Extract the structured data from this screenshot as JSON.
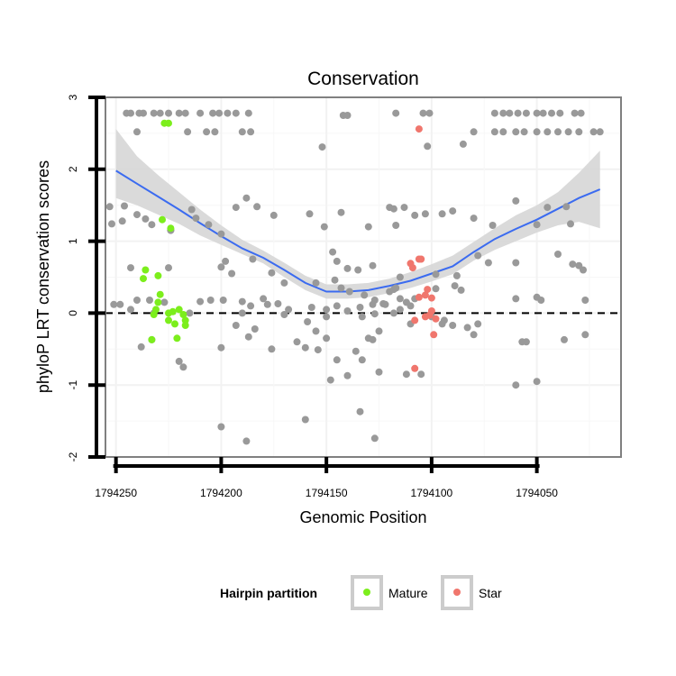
{
  "chart_data": {
    "type": "scatter",
    "title": "Conservation",
    "xlabel": "Genomic Position",
    "ylabel": "phyloP LRT conservation scores",
    "x_reversed": true,
    "xlim": [
      1794255,
      1794010
    ],
    "ylim": [
      -2,
      3
    ],
    "x_ticks": [
      1794250,
      1794200,
      1794150,
      1794100,
      1794050
    ],
    "y_ticks": [
      -2,
      -1,
      0,
      1,
      2,
      3
    ],
    "reference_line": {
      "y": 0,
      "style": "dashed"
    },
    "grid": true,
    "legend": {
      "title": "Hairpin partition",
      "position": "bottom",
      "entries": [
        {
          "name": "Mature",
          "color": "#7cee1c"
        },
        {
          "name": "Star",
          "color": "#f0766d"
        }
      ]
    },
    "colors": {
      "other": "#999999",
      "smooth_line": "#3b6bf0",
      "smooth_band": "#d6d6d6"
    },
    "smooth_fit": {
      "x": [
        1794250,
        1794240,
        1794230,
        1794220,
        1794210,
        1794200,
        1794190,
        1794180,
        1794170,
        1794160,
        1794150,
        1794140,
        1794130,
        1794120,
        1794110,
        1794100,
        1794090,
        1794080,
        1794070,
        1794060,
        1794050,
        1794040,
        1794030,
        1794020
      ],
      "y": [
        1.98,
        1.8,
        1.62,
        1.44,
        1.25,
        1.07,
        0.9,
        0.77,
        0.6,
        0.42,
        0.3,
        0.3,
        0.32,
        0.38,
        0.45,
        0.55,
        0.65,
        0.85,
        1.03,
        1.17,
        1.3,
        1.45,
        1.6,
        1.72
      ],
      "lower": [
        1.6,
        1.5,
        1.37,
        1.24,
        1.08,
        0.95,
        0.82,
        0.69,
        0.5,
        0.32,
        0.2,
        0.2,
        0.22,
        0.28,
        0.35,
        0.44,
        0.54,
        0.73,
        0.88,
        1.0,
        1.12,
        1.22,
        1.27,
        1.18
      ],
      "upper": [
        2.56,
        2.18,
        1.92,
        1.68,
        1.44,
        1.22,
        1.02,
        0.87,
        0.7,
        0.52,
        0.4,
        0.4,
        0.42,
        0.48,
        0.57,
        0.68,
        0.8,
        0.99,
        1.18,
        1.36,
        1.5,
        1.68,
        1.95,
        2.26
      ]
    },
    "series": [
      {
        "name": "Mature",
        "points": [
          [
            1794227,
            2.64
          ],
          [
            1794225,
            2.64
          ],
          [
            1794228,
            1.3
          ],
          [
            1794224,
            1.18
          ],
          [
            1794230,
            0.52
          ],
          [
            1794229,
            0.26
          ],
          [
            1794230,
            0.15
          ],
          [
            1794232,
            -0.02
          ],
          [
            1794231,
            0.05
          ],
          [
            1794225,
            0.0
          ],
          [
            1794223,
            0.02
          ],
          [
            1794218,
            -0.02
          ],
          [
            1794220,
            0.05
          ],
          [
            1794217,
            -0.1
          ],
          [
            1794225,
            -0.1
          ],
          [
            1794222,
            -0.15
          ],
          [
            1794217,
            -0.17
          ],
          [
            1794221,
            -0.35
          ],
          [
            1794233,
            -0.37
          ],
          [
            1794236,
            0.6
          ],
          [
            1794237,
            0.48
          ]
        ]
      },
      {
        "name": "Star",
        "points": [
          [
            1794106,
            2.56
          ],
          [
            1794110,
            0.69
          ],
          [
            1794109,
            0.63
          ],
          [
            1794105,
            0.75
          ],
          [
            1794106,
            0.75
          ],
          [
            1794102,
            0.33
          ],
          [
            1794103,
            0.25
          ],
          [
            1794100,
            0.21
          ],
          [
            1794100,
            0.03
          ],
          [
            1794101,
            -0.03
          ],
          [
            1794106,
            0.22
          ],
          [
            1794098,
            -0.08
          ],
          [
            1794103,
            -0.05
          ],
          [
            1794108,
            -0.1
          ],
          [
            1794099,
            -0.3
          ],
          [
            1794108,
            -0.77
          ]
        ]
      },
      {
        "name": "",
        "points": [
          [
            1794245,
            2.78
          ],
          [
            1794243,
            2.78
          ],
          [
            1794239,
            2.78
          ],
          [
            1794237,
            2.78
          ],
          [
            1794232,
            2.78
          ],
          [
            1794229,
            2.78
          ],
          [
            1794225,
            2.78
          ],
          [
            1794220,
            2.78
          ],
          [
            1794217,
            2.78
          ],
          [
            1794210,
            2.78
          ],
          [
            1794204,
            2.78
          ],
          [
            1794201,
            2.78
          ],
          [
            1794197,
            2.78
          ],
          [
            1794193,
            2.78
          ],
          [
            1794187,
            2.78
          ],
          [
            1794240,
            2.52
          ],
          [
            1794216,
            2.52
          ],
          [
            1794207,
            2.52
          ],
          [
            1794203,
            2.52
          ],
          [
            1794190,
            2.52
          ],
          [
            1794186,
            2.52
          ],
          [
            1794142,
            2.75
          ],
          [
            1794140,
            2.75
          ],
          [
            1794117,
            2.78
          ],
          [
            1794104,
            2.78
          ],
          [
            1794101,
            2.78
          ],
          [
            1794080,
            2.52
          ],
          [
            1794070,
            2.52
          ],
          [
            1794066,
            2.52
          ],
          [
            1794060,
            2.52
          ],
          [
            1794056,
            2.52
          ],
          [
            1794050,
            2.52
          ],
          [
            1794045,
            2.52
          ],
          [
            1794040,
            2.52
          ],
          [
            1794035,
            2.52
          ],
          [
            1794030,
            2.52
          ],
          [
            1794023,
            2.52
          ],
          [
            1794020,
            2.52
          ],
          [
            1794070,
            2.78
          ],
          [
            1794066,
            2.78
          ],
          [
            1794063,
            2.78
          ],
          [
            1794059,
            2.78
          ],
          [
            1794055,
            2.78
          ],
          [
            1794050,
            2.78
          ],
          [
            1794047,
            2.78
          ],
          [
            1794043,
            2.78
          ],
          [
            1794039,
            2.78
          ],
          [
            1794032,
            2.78
          ],
          [
            1794029,
            2.78
          ],
          [
            1794152,
            2.31
          ],
          [
            1794102,
            2.32
          ],
          [
            1794085,
            2.35
          ],
          [
            1794253,
            1.48
          ],
          [
            1794246,
            1.49
          ],
          [
            1794252,
            1.24
          ],
          [
            1794247,
            1.28
          ],
          [
            1794240,
            1.37
          ],
          [
            1794236,
            1.31
          ],
          [
            1794233,
            1.23
          ],
          [
            1794214,
            1.44
          ],
          [
            1794212,
            1.32
          ],
          [
            1794206,
            1.23
          ],
          [
            1794224,
            1.15
          ],
          [
            1794193,
            1.47
          ],
          [
            1794188,
            1.6
          ],
          [
            1794183,
            1.48
          ],
          [
            1794175,
            1.36
          ],
          [
            1794158,
            1.38
          ],
          [
            1794151,
            1.2
          ],
          [
            1794143,
            1.4
          ],
          [
            1794130,
            1.2
          ],
          [
            1794120,
            1.47
          ],
          [
            1794118,
            1.45
          ],
          [
            1794113,
            1.47
          ],
          [
            1794117,
            1.22
          ],
          [
            1794108,
            1.36
          ],
          [
            1794103,
            1.38
          ],
          [
            1794095,
            1.38
          ],
          [
            1794090,
            1.42
          ],
          [
            1794080,
            1.32
          ],
          [
            1794071,
            1.22
          ],
          [
            1794060,
            1.56
          ],
          [
            1794050,
            1.23
          ],
          [
            1794045,
            1.47
          ],
          [
            1794036,
            1.48
          ],
          [
            1794034,
            1.24
          ],
          [
            1794200,
            1.1
          ],
          [
            1794224,
            1.15
          ],
          [
            1794243,
            0.63
          ],
          [
            1794225,
            0.63
          ],
          [
            1794200,
            0.64
          ],
          [
            1794195,
            0.55
          ],
          [
            1794176,
            0.56
          ],
          [
            1794147,
            0.85
          ],
          [
            1794145,
            0.72
          ],
          [
            1794140,
            0.62
          ],
          [
            1794135,
            0.6
          ],
          [
            1794128,
            0.66
          ],
          [
            1794115,
            0.5
          ],
          [
            1794098,
            0.54
          ],
          [
            1794088,
            0.52
          ],
          [
            1794078,
            0.8
          ],
          [
            1794073,
            0.7
          ],
          [
            1794060,
            0.7
          ],
          [
            1794040,
            0.82
          ],
          [
            1794033,
            0.68
          ],
          [
            1794030,
            0.66
          ],
          [
            1794028,
            0.6
          ],
          [
            1794198,
            0.72
          ],
          [
            1794185,
            0.75
          ],
          [
            1794170,
            0.42
          ],
          [
            1794155,
            0.42
          ],
          [
            1794146,
            0.46
          ],
          [
            1794143,
            0.35
          ],
          [
            1794139,
            0.3
          ],
          [
            1794132,
            0.25
          ],
          [
            1794127,
            0.18
          ],
          [
            1794123,
            0.13
          ],
          [
            1794120,
            0.3
          ],
          [
            1794118,
            0.33
          ],
          [
            1794117,
            0.35
          ],
          [
            1794115,
            0.2
          ],
          [
            1794112,
            0.15
          ],
          [
            1794110,
            0.1
          ],
          [
            1794098,
            0.34
          ],
          [
            1794089,
            0.38
          ],
          [
            1794086,
            0.32
          ],
          [
            1794060,
            0.2
          ],
          [
            1794050,
            0.22
          ],
          [
            1794048,
            0.18
          ],
          [
            1794027,
            0.18
          ],
          [
            1794251,
            0.12
          ],
          [
            1794248,
            0.12
          ],
          [
            1794243,
            0.05
          ],
          [
            1794240,
            0.18
          ],
          [
            1794234,
            0.18
          ],
          [
            1794227,
            0.15
          ],
          [
            1794210,
            0.16
          ],
          [
            1794205,
            0.18
          ],
          [
            1794199,
            0.18
          ],
          [
            1794190,
            0.16
          ],
          [
            1794186,
            0.1
          ],
          [
            1794180,
            0.2
          ],
          [
            1794178,
            0.12
          ],
          [
            1794173,
            0.13
          ],
          [
            1794168,
            0.05
          ],
          [
            1794157,
            0.08
          ],
          [
            1794150,
            0.05
          ],
          [
            1794145,
            0.1
          ],
          [
            1794140,
            0.03
          ],
          [
            1794134,
            0.08
          ],
          [
            1794128,
            0.12
          ],
          [
            1794122,
            0.12
          ],
          [
            1794115,
            0.05
          ],
          [
            1794108,
            0.2
          ],
          [
            1794232,
            0.0
          ],
          [
            1794215,
            0.0
          ],
          [
            1794190,
            0.0
          ],
          [
            1794170,
            -0.02
          ],
          [
            1794150,
            -0.05
          ],
          [
            1794133,
            -0.05
          ],
          [
            1794127,
            -0.01
          ],
          [
            1794118,
            0.0
          ],
          [
            1794100,
            -0.05
          ],
          [
            1794094,
            -0.1
          ],
          [
            1794090,
            -0.17
          ],
          [
            1794083,
            -0.2
          ],
          [
            1794078,
            -0.15
          ],
          [
            1794193,
            -0.17
          ],
          [
            1794187,
            -0.33
          ],
          [
            1794184,
            -0.22
          ],
          [
            1794176,
            -0.5
          ],
          [
            1794159,
            -0.12
          ],
          [
            1794155,
            -0.25
          ],
          [
            1794150,
            -0.35
          ],
          [
            1794130,
            -0.35
          ],
          [
            1794128,
            -0.37
          ],
          [
            1794125,
            -0.25
          ],
          [
            1794110,
            -0.15
          ],
          [
            1794095,
            -0.15
          ],
          [
            1794080,
            -0.3
          ],
          [
            1794057,
            -0.4
          ],
          [
            1794055,
            -0.4
          ],
          [
            1794037,
            -0.37
          ],
          [
            1794027,
            -0.3
          ],
          [
            1794238,
            -0.47
          ],
          [
            1794233,
            -0.37
          ],
          [
            1794220,
            -0.67
          ],
          [
            1794218,
            -0.75
          ],
          [
            1794200,
            -0.48
          ],
          [
            1794164,
            -0.4
          ],
          [
            1794160,
            -0.48
          ],
          [
            1794154,
            -0.51
          ],
          [
            1794145,
            -0.65
          ],
          [
            1794136,
            -0.53
          ],
          [
            1794133,
            -0.65
          ],
          [
            1794125,
            -0.82
          ],
          [
            1794105,
            -0.85
          ],
          [
            1794148,
            -0.93
          ],
          [
            1794140,
            -0.87
          ],
          [
            1794134,
            -1.37
          ],
          [
            1794112,
            -0.85
          ],
          [
            1794060,
            -1.0
          ],
          [
            1794050,
            -0.95
          ],
          [
            1794200,
            -1.58
          ],
          [
            1794188,
            -1.78
          ],
          [
            1794160,
            -1.48
          ],
          [
            1794127,
            -1.74
          ]
        ]
      }
    ]
  }
}
